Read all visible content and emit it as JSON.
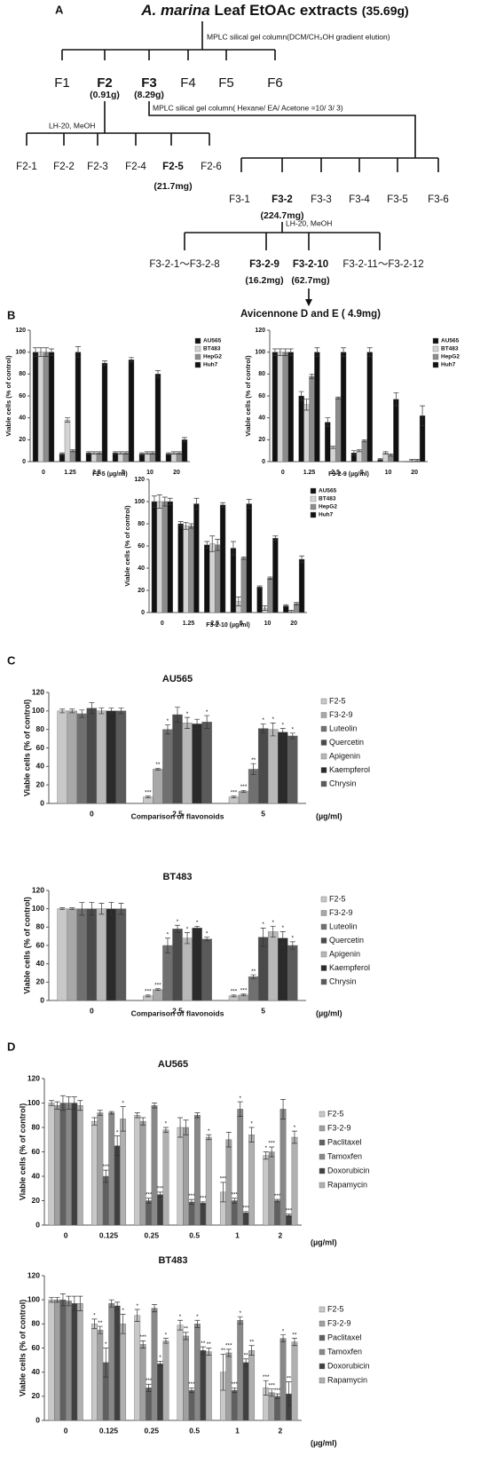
{
  "diagram": {
    "panel_labels": [
      "A",
      "B",
      "C",
      "D"
    ],
    "title_italic": "A. marina",
    "title": "Leaf EtOAc extracts",
    "title_mass": "(35.69g)",
    "step1": "MPLC silical gel column(DCM/CH₃OH gradient elution)",
    "fractions": [
      {
        "label": "F1"
      },
      {
        "label": "F2",
        "mass": "(0.91g)"
      },
      {
        "label": "F3",
        "mass": "(8.29g)"
      },
      {
        "label": "F4"
      },
      {
        "label": "F5"
      },
      {
        "label": "F6"
      }
    ],
    "step2": "LH-20, MeOH",
    "f2_fractions": [
      {
        "label": "F2-1"
      },
      {
        "label": "F2-2"
      },
      {
        "label": "F2-3"
      },
      {
        "label": "F2-4"
      },
      {
        "label": "F2-5",
        "mass": "(21.7mg)"
      },
      {
        "label": "F2-6"
      }
    ],
    "step3": "MPLC silical gel column( Hexane/ EA/ Acetone =10/ 3/ 3)",
    "f3_fractions": [
      {
        "label": "F3-1"
      },
      {
        "label": "F3-2",
        "mass": "(224.7mg)"
      },
      {
        "label": "F3-3"
      },
      {
        "label": "F3-4"
      },
      {
        "label": "F3-5"
      },
      {
        "label": "F3-6"
      }
    ],
    "step4": "LH-20, MeOH",
    "f32_fractions": [
      {
        "label": "F3-2-1～F3-2-8"
      },
      {
        "label": "F3-2-9",
        "mass": "(16.2mg)"
      },
      {
        "label": "F3-2-10",
        "mass": "(62.7mg)"
      },
      {
        "label": "F3-2-11～F3-2-12"
      }
    ],
    "product": "Avicennone D and E ( 4.9mg)"
  },
  "chart_data": [
    {
      "type": "bar",
      "x_label": "F2-5 (µg/ml)",
      "y_label": "Viable cells (% of control)",
      "categories": [
        "0",
        "1.25",
        "2.5",
        "5",
        "10",
        "20"
      ],
      "ylim": [
        0,
        120
      ],
      "yticks": [
        0,
        20,
        40,
        60,
        80,
        100,
        120
      ],
      "series": [
        {
          "name": "AU565",
          "color": "#111111",
          "values": [
            100,
            7,
            8,
            8,
            7,
            7
          ],
          "errors": [
            4,
            1,
            1,
            1,
            1,
            1
          ]
        },
        {
          "name": "BT483",
          "color": "#d4d4d4",
          "values": [
            100,
            38,
            8,
            8,
            8,
            8
          ],
          "errors": [
            4,
            2,
            1,
            1,
            1,
            1
          ]
        },
        {
          "name": "HepG2",
          "color": "#8c8c8c",
          "values": [
            100,
            10,
            8,
            8,
            8,
            8
          ],
          "errors": [
            4,
            1,
            1,
            1,
            1,
            1
          ]
        },
        {
          "name": "Huh7",
          "color": "#111111",
          "values": [
            100,
            100,
            90,
            93,
            80,
            20
          ],
          "errors": [
            3,
            5,
            2,
            2,
            3,
            2
          ]
        }
      ]
    },
    {
      "type": "bar",
      "x_label": "F3-2-9 (µg/ml)",
      "y_label": "Viable cells (% of control)",
      "categories": [
        "0",
        "1.25",
        "2.5",
        "5",
        "10",
        "20"
      ],
      "ylim": [
        0,
        120
      ],
      "yticks": [
        0,
        20,
        40,
        60,
        80,
        100,
        120
      ],
      "series": [
        {
          "name": "AU565",
          "color": "#111111",
          "values": [
            100,
            60,
            36,
            8,
            2,
            0
          ],
          "errors": [
            3,
            4,
            4,
            2,
            1,
            0
          ]
        },
        {
          "name": "BT483",
          "color": "#d4d4d4",
          "values": [
            100,
            52,
            13,
            10,
            8,
            1
          ],
          "errors": [
            3,
            5,
            1,
            1,
            1,
            1
          ]
        },
        {
          "name": "HepG2",
          "color": "#8c8c8c",
          "values": [
            100,
            78,
            58,
            19,
            6,
            1
          ],
          "errors": [
            3,
            2,
            1,
            1,
            1,
            1
          ]
        },
        {
          "name": "Huh7",
          "color": "#111111",
          "values": [
            100,
            100,
            100,
            100,
            57,
            42
          ],
          "errors": [
            3,
            4,
            4,
            4,
            6,
            9
          ]
        }
      ]
    },
    {
      "type": "bar",
      "x_label": "F3-2-10 (µg/ml)",
      "y_label": "Viable cells (% of control)",
      "categories": [
        "0",
        "1.25",
        "2.5",
        "5",
        "10",
        "20"
      ],
      "ylim": [
        0,
        120
      ],
      "yticks": [
        0,
        20,
        40,
        60,
        80,
        100,
        120
      ],
      "series": [
        {
          "name": "AU565",
          "color": "#111111",
          "values": [
            100,
            80,
            61,
            58,
            23,
            6
          ],
          "errors": [
            5,
            2,
            3,
            6,
            1,
            1
          ]
        },
        {
          "name": "BT483",
          "color": "#d4d4d4",
          "values": [
            100,
            78,
            62,
            10,
            4,
            1
          ],
          "errors": [
            6,
            3,
            7,
            4,
            2,
            1
          ]
        },
        {
          "name": "HepG2",
          "color": "#8c8c8c",
          "values": [
            100,
            78,
            61,
            49,
            31,
            8
          ],
          "errors": [
            4,
            2,
            5,
            1,
            1,
            1
          ]
        },
        {
          "name": "Huh7",
          "color": "#111111",
          "values": [
            100,
            98,
            97,
            98,
            67,
            48
          ],
          "errors": [
            3,
            5,
            2,
            4,
            2,
            3
          ]
        }
      ]
    },
    {
      "type": "bar",
      "title": "AU565",
      "x_label": "Comparison of flavonoids",
      "unit_label": "(µg/ml)",
      "y_label": "Viable cells (% of control)",
      "categories": [
        "0",
        "2.5",
        "5"
      ],
      "ylim": [
        0,
        120
      ],
      "yticks": [
        0,
        20,
        40,
        60,
        80,
        100,
        120
      ],
      "series": [
        {
          "name": "F2-5",
          "color": "#c8c8c8",
          "values": [
            100,
            7,
            7
          ],
          "errors": [
            2,
            1,
            1
          ],
          "annotations": [
            null,
            "***",
            "***"
          ]
        },
        {
          "name": "F3-2-9",
          "color": "#a8a8a8",
          "values": [
            100,
            37,
            13
          ],
          "errors": [
            2,
            1,
            1
          ],
          "annotations": [
            null,
            "**",
            "***"
          ]
        },
        {
          "name": "Luteolin",
          "color": "#707070",
          "values": [
            97,
            80,
            37
          ],
          "errors": [
            4,
            5,
            6
          ],
          "annotations": [
            null,
            "*",
            "**"
          ]
        },
        {
          "name": "Quercetin",
          "color": "#4a4a4a",
          "values": [
            103,
            96,
            81
          ],
          "errors": [
            6,
            8,
            5
          ],
          "annotations": [
            null,
            null,
            "*"
          ]
        },
        {
          "name": "Apigenin",
          "color": "#b8b8b8",
          "values": [
            100,
            87,
            80
          ],
          "errors": [
            3,
            6,
            7
          ],
          "annotations": [
            null,
            "*",
            "*"
          ]
        },
        {
          "name": "Kaempferol",
          "color": "#2a2a2a",
          "values": [
            100,
            86,
            77
          ],
          "errors": [
            3,
            5,
            4
          ],
          "annotations": [
            null,
            null,
            "*"
          ]
        },
        {
          "name": "Chrysin",
          "color": "#5a5a5a",
          "values": [
            100,
            88,
            73
          ],
          "errors": [
            3,
            7,
            3
          ],
          "annotations": [
            null,
            "*",
            "*"
          ]
        }
      ]
    },
    {
      "type": "bar",
      "title": "BT483",
      "x_label": "Comparison of flavonoids",
      "unit_label": "(µg/ml)",
      "y_label": "Viable cells (% of control)",
      "categories": [
        "0",
        "2.5",
        "5"
      ],
      "ylim": [
        0,
        120
      ],
      "yticks": [
        0,
        20,
        40,
        60,
        80,
        100,
        120
      ],
      "series": [
        {
          "name": "F2-5",
          "color": "#c8c8c8",
          "values": [
            100,
            5,
            5
          ],
          "errors": [
            1,
            1,
            1
          ],
          "annotations": [
            null,
            "***",
            "***"
          ]
        },
        {
          "name": "F3-2-9",
          "color": "#a8a8a8",
          "values": [
            100,
            12,
            6
          ],
          "errors": [
            1,
            1,
            1
          ],
          "annotations": [
            null,
            "***",
            "***"
          ]
        },
        {
          "name": "Luteolin",
          "color": "#707070",
          "values": [
            100,
            60,
            26
          ],
          "errors": [
            7,
            8,
            2
          ],
          "annotations": [
            null,
            "*",
            "**"
          ]
        },
        {
          "name": "Quercetin",
          "color": "#4a4a4a",
          "values": [
            100,
            78,
            69
          ],
          "errors": [
            7,
            4,
            10
          ],
          "annotations": [
            null,
            "*",
            "*"
          ]
        },
        {
          "name": "Apigenin",
          "color": "#b8b8b8",
          "values": [
            100,
            68,
            75
          ],
          "errors": [
            6,
            6,
            6
          ],
          "annotations": [
            null,
            "*",
            "*"
          ]
        },
        {
          "name": "Kaempferol",
          "color": "#2a2a2a",
          "values": [
            100,
            79,
            68
          ],
          "errors": [
            7,
            2,
            7
          ],
          "annotations": [
            null,
            "*",
            "*"
          ]
        },
        {
          "name": "Chrysin",
          "color": "#5a5a5a",
          "values": [
            100,
            67,
            60
          ],
          "errors": [
            6,
            2,
            4
          ],
          "annotations": [
            null,
            "*",
            "*"
          ]
        }
      ]
    },
    {
      "type": "bar",
      "title": "AU565",
      "unit_label": "(µg/ml)",
      "y_label": "Viable cells (% of control)",
      "categories": [
        "0",
        "0.125",
        "0.25",
        "0.5",
        "1",
        "2"
      ],
      "ylim": [
        0,
        120
      ],
      "yticks": [
        0,
        20,
        40,
        60,
        80,
        100,
        120
      ],
      "series": [
        {
          "name": "F2-5",
          "color": "#c8c8c8",
          "values": [
            100,
            85,
            90,
            80,
            27,
            57
          ],
          "errors": [
            2,
            3,
            2,
            8,
            8,
            3
          ],
          "annotations": [
            null,
            null,
            null,
            null,
            "***",
            "*"
          ]
        },
        {
          "name": "F3-2-9",
          "color": "#a0a0a0",
          "values": [
            98,
            92,
            85,
            80,
            70,
            60
          ],
          "errors": [
            3,
            2,
            3,
            6,
            6,
            4
          ],
          "annotations": [
            null,
            null,
            null,
            null,
            null,
            "***"
          ]
        },
        {
          "name": "Paclitaxel",
          "color": "#606060",
          "values": [
            100,
            40,
            20,
            19,
            20,
            20
          ],
          "errors": [
            6,
            5,
            2,
            2,
            2,
            1
          ],
          "annotations": [
            null,
            "***",
            "***",
            "***",
            "***",
            "***"
          ]
        },
        {
          "name": "Tamoxfen",
          "color": "#888888",
          "values": [
            100,
            92,
            98,
            90,
            95,
            95
          ],
          "errors": [
            5,
            1,
            2,
            2,
            6,
            8
          ],
          "annotations": [
            null,
            null,
            null,
            null,
            "*",
            null
          ]
        },
        {
          "name": "Doxorubicin",
          "color": "#404040",
          "values": [
            100,
            65,
            25,
            18,
            10,
            8
          ],
          "errors": [
            5,
            8,
            2,
            1,
            1,
            1
          ],
          "annotations": [
            null,
            "*",
            "***",
            "***",
            "***",
            "***"
          ]
        },
        {
          "name": "Rapamycin",
          "color": "#b0b0b0",
          "values": [
            98,
            87,
            78,
            72,
            74,
            72
          ],
          "errors": [
            4,
            10,
            2,
            2,
            6,
            5
          ],
          "annotations": [
            null,
            "*",
            "*",
            "*",
            "*",
            "*"
          ]
        }
      ]
    },
    {
      "type": "bar",
      "title": "BT483",
      "unit_label": "(µg/ml)",
      "y_label": "Viable cells (% of control)",
      "categories": [
        "0",
        "0.125",
        "0.25",
        "0.5",
        "1",
        "2"
      ],
      "ylim": [
        0,
        120
      ],
      "yticks": [
        0,
        20,
        40,
        60,
        80,
        100,
        120
      ],
      "series": [
        {
          "name": "F2-5",
          "color": "#c8c8c8",
          "values": [
            100,
            80,
            87,
            79,
            40,
            27
          ],
          "errors": [
            2,
            4,
            5,
            4,
            15,
            6
          ],
          "annotations": [
            null,
            "*",
            "*",
            "*",
            "**",
            "***"
          ]
        },
        {
          "name": "F3-2-9",
          "color": "#a0a0a0",
          "values": [
            100,
            75,
            63,
            70,
            56,
            23
          ],
          "errors": [
            2,
            3,
            3,
            3,
            3,
            3
          ],
          "annotations": [
            null,
            "**",
            "***",
            "**",
            "***",
            "***"
          ]
        },
        {
          "name": "Paclitaxel",
          "color": "#606060",
          "values": [
            100,
            48,
            27,
            25,
            25,
            20
          ],
          "errors": [
            5,
            12,
            3,
            2,
            2,
            2
          ],
          "annotations": [
            null,
            "*",
            "***",
            "***",
            "***",
            "***"
          ]
        },
        {
          "name": "Tamoxfen",
          "color": "#888888",
          "values": [
            99,
            97,
            93,
            80,
            83,
            68
          ],
          "errors": [
            4,
            3,
            3,
            3,
            3,
            3
          ],
          "annotations": [
            null,
            null,
            null,
            "*",
            "*",
            "*"
          ]
        },
        {
          "name": "Doxorubicin",
          "color": "#404040",
          "values": [
            97,
            95,
            47,
            58,
            48,
            22
          ],
          "errors": [
            6,
            3,
            2,
            3,
            3,
            10
          ],
          "annotations": [
            null,
            null,
            "*",
            "**",
            "**",
            "**"
          ]
        },
        {
          "name": "Rapamycin",
          "color": "#b0b0b0",
          "values": [
            97,
            80,
            66,
            57,
            58,
            65
          ],
          "errors": [
            6,
            8,
            2,
            3,
            4,
            3
          ],
          "annotations": [
            null,
            "*",
            "*",
            "**",
            "**",
            "**"
          ]
        }
      ]
    }
  ]
}
